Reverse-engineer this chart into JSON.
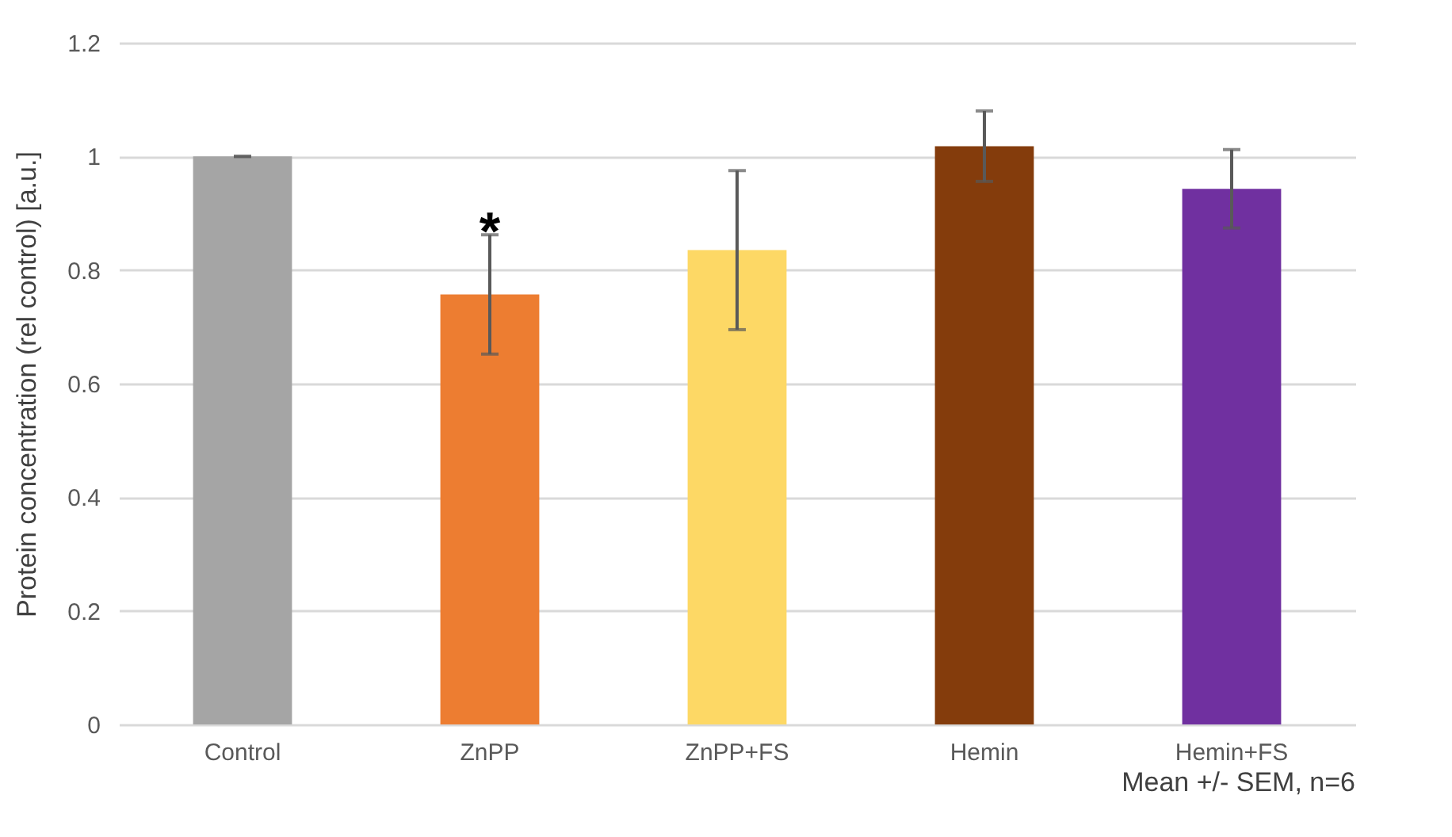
{
  "chart_data": {
    "type": "bar",
    "ylabel": "Protein concentration (rel control) [a.u.]",
    "categories": [
      "Control",
      "ZnPP",
      "ZnPP+FS",
      "Hemin",
      "Hemin+FS"
    ],
    "values": [
      1.0,
      0.757,
      0.835,
      1.018,
      0.943
    ],
    "errors": [
      0,
      0.105,
      0.14,
      0.062,
      0.069
    ],
    "colors": [
      "#a5a5a5",
      "#ed7d31",
      "#fdd865",
      "#843c0c",
      "#7030a0"
    ],
    "ylim": [
      0,
      1.2
    ],
    "yticks": [
      0,
      0.2,
      0.4,
      0.6,
      0.8,
      1,
      1.2
    ],
    "grid": "y",
    "annotations": [
      {
        "text": "*",
        "x": "ZnPP",
        "y": 0.88
      },
      "Mean +/- SEM, n=6"
    ]
  }
}
